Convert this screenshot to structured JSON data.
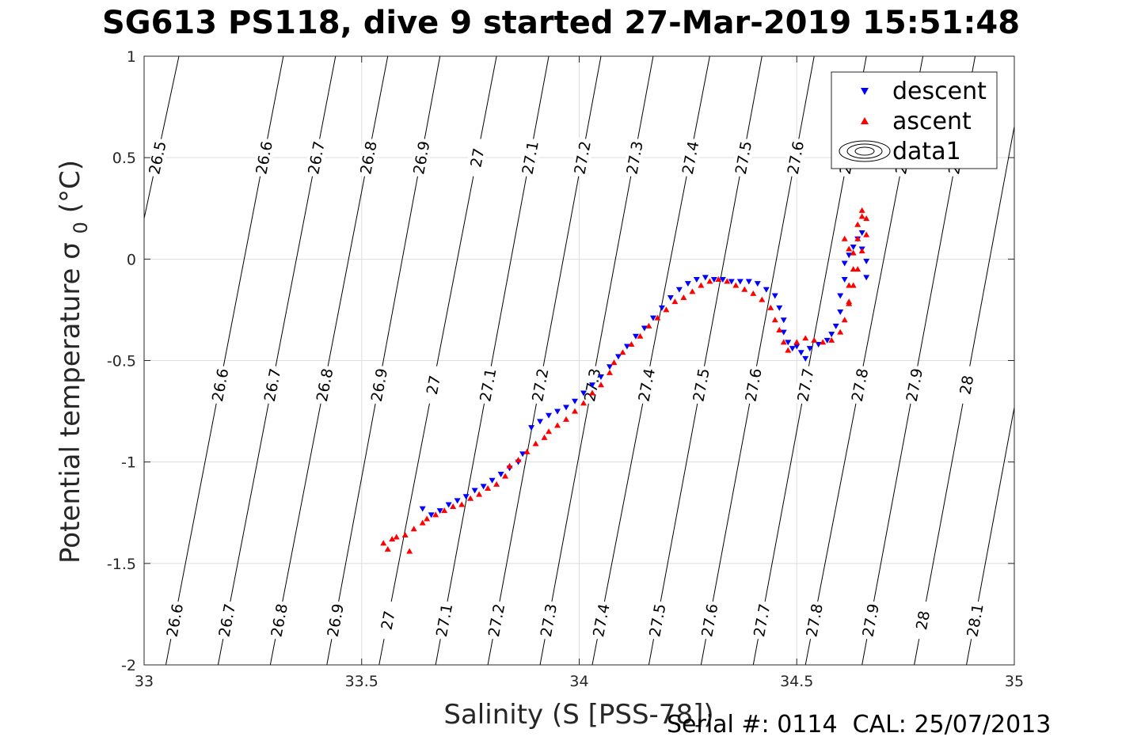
{
  "header": {
    "title": "SG613 PS118, dive 9 started 27-Mar-2019 15:51:48"
  },
  "footer": {
    "serial": "Serial #: 0114  CAL: 25/07/2013"
  },
  "colors": {
    "descent": "#0000ff",
    "ascent": "#ff0000",
    "grid": "#dddddd",
    "contour": "#000000"
  },
  "chart_data": {
    "type": "scatter",
    "title": "SG613 PS118, dive 9 started 27-Mar-2019 15:51:48",
    "xlabel": "Salinity (S [PSS-78])",
    "ylabel": "Potential temperature σ0 (°C)",
    "xlim": [
      33,
      35
    ],
    "ylim": [
      -2,
      1
    ],
    "x_ticks": [
      "33",
      "33.5",
      "34",
      "34.5",
      "35"
    ],
    "y_ticks": [
      "-2",
      "-1.5",
      "-1",
      "-0.5",
      "0",
      "0.5",
      "1"
    ],
    "grid": true,
    "legend_position": "top-right",
    "legend": [
      "descent",
      "ascent",
      "data1"
    ],
    "density_contours": {
      "levels": [
        "26.5",
        "26.6",
        "26.7",
        "26.8",
        "26.9",
        "27",
        "27.1",
        "27.2",
        "27.3",
        "27.4",
        "27.5",
        "27.6",
        "27.7",
        "27.8",
        "27.9",
        "28",
        "28.1"
      ],
      "lines": [
        {
          "label": "26.5",
          "bottom_s": 32.78,
          "top_s": 33.08
        },
        {
          "label": "26.6",
          "bottom_s": 33.05,
          "top_s": 33.32
        },
        {
          "label": "26.7",
          "bottom_s": 33.17,
          "top_s": 33.44
        },
        {
          "label": "26.8",
          "bottom_s": 33.29,
          "top_s": 33.56
        },
        {
          "label": "26.9",
          "bottom_s": 33.42,
          "top_s": 33.68
        },
        {
          "label": "27",
          "bottom_s": 33.54,
          "top_s": 33.81
        },
        {
          "label": "27.1",
          "bottom_s": 33.67,
          "top_s": 33.93
        },
        {
          "label": "27.2",
          "bottom_s": 33.79,
          "top_s": 34.05
        },
        {
          "label": "27.3",
          "bottom_s": 33.91,
          "top_s": 34.17
        },
        {
          "label": "27.4",
          "bottom_s": 34.03,
          "top_s": 34.3
        },
        {
          "label": "27.5",
          "bottom_s": 34.16,
          "top_s": 34.42
        },
        {
          "label": "27.6",
          "bottom_s": 34.28,
          "top_s": 34.54
        },
        {
          "label": "27.7",
          "bottom_s": 34.4,
          "top_s": 34.66
        },
        {
          "label": "27.8",
          "bottom_s": 34.52,
          "top_s": 34.79
        },
        {
          "label": "27.9",
          "bottom_s": 34.65,
          "top_s": 34.91
        },
        {
          "label": "28",
          "bottom_s": 34.77,
          "top_s": 35.03
        },
        {
          "label": "28.1",
          "bottom_s": 34.89,
          "top_s": 35.15
        }
      ]
    },
    "series": [
      {
        "name": "descent",
        "marker": "triangle-down",
        "color": "#0000ff",
        "points": [
          [
            33.64,
            -1.23
          ],
          [
            33.66,
            -1.26
          ],
          [
            33.68,
            -1.24
          ],
          [
            33.7,
            -1.21
          ],
          [
            33.72,
            -1.19
          ],
          [
            33.74,
            -1.17
          ],
          [
            33.76,
            -1.14
          ],
          [
            33.78,
            -1.12
          ],
          [
            33.8,
            -1.09
          ],
          [
            33.82,
            -1.06
          ],
          [
            33.84,
            -1.03
          ],
          [
            33.86,
            -1.0
          ],
          [
            33.87,
            -0.96
          ],
          [
            33.89,
            -0.83
          ],
          [
            33.91,
            -0.8
          ],
          [
            33.93,
            -0.77
          ],
          [
            33.95,
            -0.75
          ],
          [
            33.97,
            -0.73
          ],
          [
            33.99,
            -0.7
          ],
          [
            34.01,
            -0.66
          ],
          [
            34.03,
            -0.62
          ],
          [
            34.05,
            -0.58
          ],
          [
            34.07,
            -0.53
          ],
          [
            34.09,
            -0.48
          ],
          [
            34.11,
            -0.43
          ],
          [
            34.13,
            -0.38
          ],
          [
            34.15,
            -0.34
          ],
          [
            34.17,
            -0.29
          ],
          [
            34.19,
            -0.24
          ],
          [
            34.21,
            -0.19
          ],
          [
            34.23,
            -0.15
          ],
          [
            34.25,
            -0.12
          ],
          [
            34.27,
            -0.1
          ],
          [
            34.29,
            -0.09
          ],
          [
            34.31,
            -0.1
          ],
          [
            34.33,
            -0.1
          ],
          [
            34.35,
            -0.11
          ],
          [
            34.37,
            -0.11
          ],
          [
            34.39,
            -0.11
          ],
          [
            34.41,
            -0.12
          ],
          [
            34.43,
            -0.15
          ],
          [
            34.45,
            -0.18
          ],
          [
            34.46,
            -0.24
          ],
          [
            34.47,
            -0.3
          ],
          [
            34.47,
            -0.36
          ],
          [
            34.48,
            -0.41
          ],
          [
            34.49,
            -0.44
          ],
          [
            34.5,
            -0.43
          ],
          [
            34.51,
            -0.46
          ],
          [
            34.52,
            -0.49
          ],
          [
            34.53,
            -0.44
          ],
          [
            34.55,
            -0.42
          ],
          [
            34.57,
            -0.4
          ],
          [
            34.58,
            -0.37
          ],
          [
            34.59,
            -0.33
          ],
          [
            34.6,
            -0.26
          ],
          [
            34.6,
            -0.18
          ],
          [
            34.61,
            -0.1
          ],
          [
            34.61,
            -0.02
          ],
          [
            34.62,
            0.02
          ],
          [
            34.63,
            0.06
          ],
          [
            34.64,
            0.1
          ],
          [
            34.65,
            0.13
          ],
          [
            34.65,
            0.05
          ],
          [
            34.66,
            -0.01
          ],
          [
            34.66,
            -0.09
          ]
        ]
      },
      {
        "name": "ascent",
        "marker": "triangle-up",
        "color": "#ff0000",
        "points": [
          [
            33.55,
            -1.4
          ],
          [
            33.56,
            -1.43
          ],
          [
            33.57,
            -1.38
          ],
          [
            33.58,
            -1.37
          ],
          [
            33.6,
            -1.36
          ],
          [
            33.61,
            -1.44
          ],
          [
            33.62,
            -1.33
          ],
          [
            33.64,
            -1.3
          ],
          [
            33.65,
            -1.28
          ],
          [
            33.67,
            -1.26
          ],
          [
            33.69,
            -1.24
          ],
          [
            33.71,
            -1.22
          ],
          [
            33.73,
            -1.21
          ],
          [
            33.75,
            -1.18
          ],
          [
            33.77,
            -1.16
          ],
          [
            33.79,
            -1.13
          ],
          [
            33.81,
            -1.11
          ],
          [
            33.83,
            -1.07
          ],
          [
            33.84,
            -1.02
          ],
          [
            33.86,
            -0.99
          ],
          [
            33.88,
            -0.95
          ],
          [
            33.9,
            -0.91
          ],
          [
            33.92,
            -0.88
          ],
          [
            33.93,
            -0.85
          ],
          [
            33.95,
            -0.82
          ],
          [
            33.97,
            -0.79
          ],
          [
            33.99,
            -0.75
          ],
          [
            34.01,
            -0.71
          ],
          [
            34.03,
            -0.66
          ],
          [
            34.05,
            -0.62
          ],
          [
            34.07,
            -0.56
          ],
          [
            34.08,
            -0.51
          ],
          [
            34.1,
            -0.46
          ],
          [
            34.12,
            -0.42
          ],
          [
            34.14,
            -0.38
          ],
          [
            34.16,
            -0.33
          ],
          [
            34.18,
            -0.29
          ],
          [
            34.2,
            -0.25
          ],
          [
            34.22,
            -0.21
          ],
          [
            34.24,
            -0.19
          ],
          [
            34.26,
            -0.16
          ],
          [
            34.28,
            -0.13
          ],
          [
            34.3,
            -0.11
          ],
          [
            34.32,
            -0.1
          ],
          [
            34.34,
            -0.11
          ],
          [
            34.36,
            -0.13
          ],
          [
            34.38,
            -0.15
          ],
          [
            34.4,
            -0.17
          ],
          [
            34.42,
            -0.2
          ],
          [
            34.44,
            -0.24
          ],
          [
            34.45,
            -0.3
          ],
          [
            34.46,
            -0.35
          ],
          [
            34.47,
            -0.41
          ],
          [
            34.48,
            -0.45
          ],
          [
            34.5,
            -0.41
          ],
          [
            34.52,
            -0.39
          ],
          [
            34.54,
            -0.4
          ],
          [
            34.56,
            -0.41
          ],
          [
            34.58,
            -0.4
          ],
          [
            34.6,
            -0.36
          ],
          [
            34.61,
            -0.3
          ],
          [
            34.62,
            -0.22
          ],
          [
            34.62,
            -0.13
          ],
          [
            34.63,
            -0.05
          ],
          [
            34.63,
            0.03
          ],
          [
            34.64,
            0.1
          ],
          [
            34.64,
            0.17
          ],
          [
            34.65,
            0.21
          ],
          [
            34.65,
            0.24
          ],
          [
            34.66,
            0.2
          ],
          [
            34.66,
            0.12
          ],
          [
            34.65,
            0.04
          ],
          [
            34.64,
            -0.05
          ],
          [
            34.63,
            -0.13
          ],
          [
            34.62,
            -0.21
          ],
          [
            34.61,
            0.1
          ],
          [
            34.62,
            0.05
          ]
        ]
      }
    ]
  }
}
